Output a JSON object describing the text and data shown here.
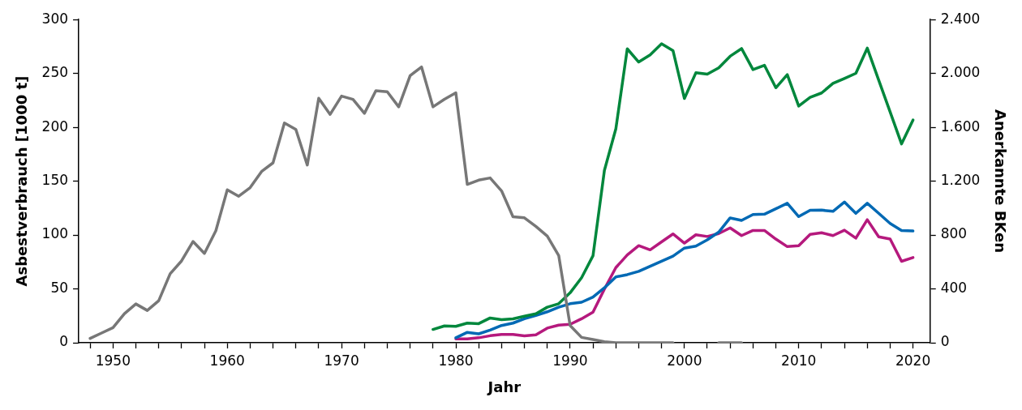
{
  "chart_data": {
    "type": "line",
    "xlabel": "Jahr",
    "ylabel": "Asbestverbrauch [1000 t]",
    "y2label": "Anerkannte BKen",
    "x": [
      1948,
      1949,
      1950,
      1951,
      1952,
      1953,
      1954,
      1955,
      1956,
      1957,
      1958,
      1959,
      1960,
      1961,
      1962,
      1963,
      1964,
      1965,
      1966,
      1967,
      1968,
      1969,
      1970,
      1971,
      1972,
      1973,
      1974,
      1975,
      1976,
      1977,
      1978,
      1979,
      1980,
      1981,
      1982,
      1983,
      1984,
      1985,
      1986,
      1987,
      1988,
      1989,
      1990,
      1991,
      1992,
      1993,
      1994,
      1995,
      1996,
      1997,
      1998,
      1999,
      2000,
      2001,
      2002,
      2003,
      2004,
      2005,
      2006,
      2007,
      2008,
      2009,
      2010,
      2011,
      2012,
      2013,
      2014,
      2015,
      2016,
      2017,
      2018,
      2019,
      2020
    ],
    "series": [
      {
        "color": "#777777",
        "values": [
          4,
          9,
          14,
          27,
          36,
          30,
          39,
          64,
          76,
          94,
          83,
          104,
          142,
          136,
          144,
          159,
          167,
          204,
          198,
          165,
          227,
          212,
          229,
          226,
          213,
          234,
          233,
          219,
          248,
          256,
          219,
          226,
          232,
          147,
          151,
          153,
          141,
          117,
          116,
          108,
          99,
          81,
          16,
          5,
          3,
          1,
          0,
          0,
          0,
          0,
          0,
          0,
          null,
          null,
          null,
          0,
          0,
          0,
          null,
          null,
          null,
          null,
          null,
          null,
          null,
          null,
          null,
          null,
          null,
          null,
          null,
          null,
          null
        ]
      },
      {
        "color": "#00873c",
        "axis": "y2",
        "values": [
          null,
          null,
          null,
          null,
          null,
          null,
          null,
          null,
          null,
          null,
          null,
          null,
          null,
          null,
          null,
          null,
          null,
          null,
          null,
          null,
          null,
          null,
          null,
          null,
          null,
          null,
          null,
          null,
          null,
          null,
          99,
          125,
          122,
          146,
          142,
          184,
          172,
          178,
          197,
          215,
          264,
          290,
          371,
          483,
          646,
          1280,
          1589,
          2183,
          2085,
          2138,
          2220,
          2170,
          1814,
          2005,
          1995,
          2042,
          2128,
          2185,
          2029,
          2061,
          1894,
          1991,
          1758,
          1823,
          1855,
          1926,
          1963,
          2001,
          2188,
          1951,
          1714,
          1477,
          1654
        ]
      },
      {
        "color": "#0069b4",
        "axis": "y2",
        "values": [
          null,
          null,
          null,
          null,
          null,
          null,
          null,
          null,
          null,
          null,
          null,
          null,
          null,
          null,
          null,
          null,
          null,
          null,
          null,
          null,
          null,
          null,
          null,
          null,
          null,
          null,
          null,
          null,
          null,
          null,
          null,
          null,
          37,
          77,
          66,
          94,
          128,
          146,
          178,
          202,
          230,
          264,
          290,
          301,
          339,
          408,
          489,
          506,
          530,
          568,
          605,
          643,
          703,
          718,
          764,
          821,
          927,
          909,
          952,
          955,
          995,
          1036,
          937,
          984,
          985,
          976,
          1045,
          961,
          1036,
          961,
          886,
          834,
          830
        ]
      },
      {
        "color": "#b5197d",
        "axis": "y2",
        "values": [
          null,
          null,
          null,
          null,
          null,
          null,
          null,
          null,
          null,
          null,
          null,
          null,
          null,
          null,
          null,
          null,
          null,
          null,
          null,
          null,
          null,
          null,
          null,
          null,
          null,
          null,
          null,
          null,
          null,
          null,
          null,
          null,
          28,
          28,
          37,
          52,
          62,
          62,
          51,
          58,
          109,
          131,
          137,
          178,
          227,
          399,
          558,
          652,
          721,
          690,
          749,
          808,
          740,
          802,
          789,
          811,
          853,
          796,
          834,
          834,
          770,
          714,
          721,
          805,
          817,
          796,
          836,
          777,
          914,
          787,
          770,
          605,
          633
        ]
      }
    ],
    "xlim": [
      1947,
      2021.5
    ],
    "xticks": [
      {
        "value": 1948,
        "label": null
      },
      1950,
      {
        "value": 1952,
        "label": null
      },
      {
        "value": 1954,
        "label": null
      },
      {
        "value": 1956,
        "label": null
      },
      {
        "value": 1958,
        "label": null
      },
      1960,
      {
        "value": 1962,
        "label": null
      },
      {
        "value": 1964,
        "label": null
      },
      {
        "value": 1966,
        "label": null
      },
      {
        "value": 1968,
        "label": null
      },
      1970,
      {
        "value": 1972,
        "label": null
      },
      {
        "value": 1974,
        "label": null
      },
      {
        "value": 1976,
        "label": null
      },
      {
        "value": 1978,
        "label": null
      },
      1980,
      {
        "value": 1982,
        "label": null
      },
      {
        "value": 1984,
        "label": null
      },
      {
        "value": 1986,
        "label": null
      },
      {
        "value": 1988,
        "label": null
      },
      1990,
      {
        "value": 1992,
        "label": null
      },
      {
        "value": 1994,
        "label": null
      },
      {
        "value": 1996,
        "label": null
      },
      {
        "value": 1998,
        "label": null
      },
      2000,
      {
        "value": 2002,
        "label": null
      },
      {
        "value": 2004,
        "label": null
      },
      {
        "value": 2006,
        "label": null
      },
      {
        "value": 2008,
        "label": null
      },
      2010,
      {
        "value": 2012,
        "label": null
      },
      {
        "value": 2014,
        "label": null
      },
      {
        "value": 2016,
        "label": null
      },
      {
        "value": 2018,
        "label": null
      },
      2020
    ],
    "ylim": [
      0,
      300
    ],
    "yticks": [
      0,
      50,
      100,
      150,
      200,
      250,
      300
    ],
    "y2lim": [
      0,
      2400
    ],
    "y2ticks": [
      0,
      400,
      800,
      {
        "value": 1200,
        "label": "1.200"
      },
      {
        "value": 1600,
        "label": "1.600"
      },
      {
        "value": 2000,
        "label": "2.000"
      },
      {
        "value": 2400,
        "label": "2.400"
      }
    ],
    "grid": false,
    "legend": false,
    "marker": "none",
    "line_style": "solid"
  }
}
